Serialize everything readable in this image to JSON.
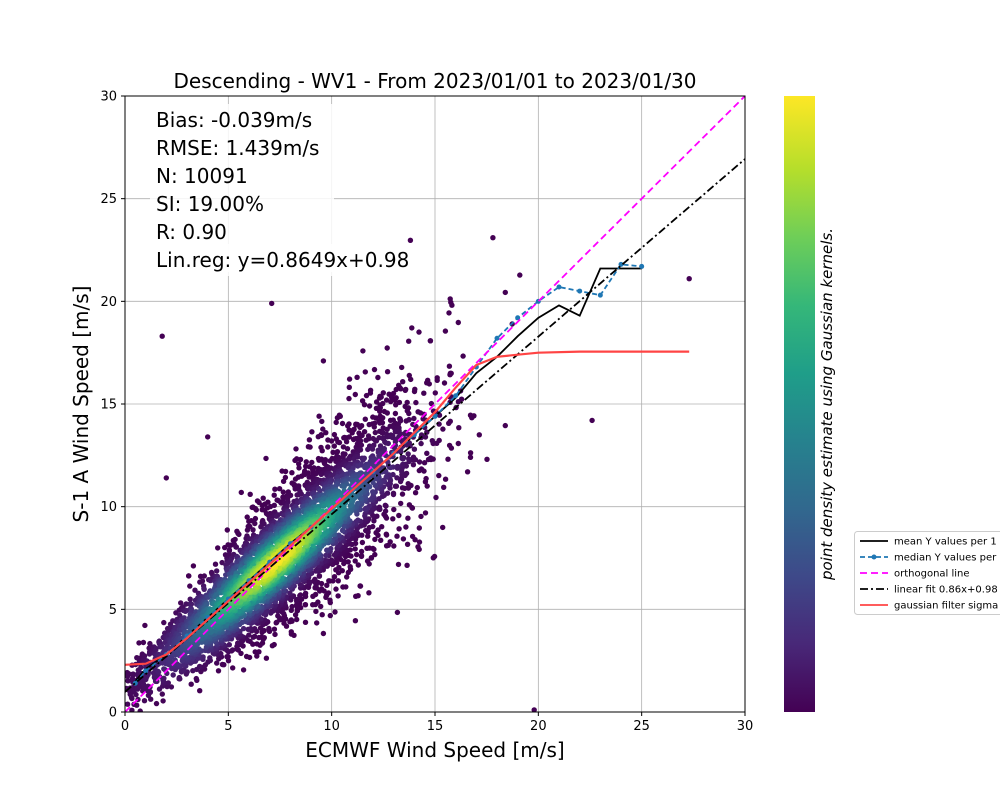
{
  "chart_data": {
    "type": "scatter",
    "title": "Descending - WV1 - From 2023/01/01 to 2023/01/30",
    "xlabel": "ECMWF Wind Speed [m/s]",
    "ylabel": "S-1 A Wind Speed [m/s]",
    "xlim": [
      0,
      30
    ],
    "ylim": [
      0,
      30
    ],
    "xticks": [
      0,
      5,
      10,
      15,
      20,
      25,
      30
    ],
    "yticks": [
      0,
      5,
      10,
      15,
      20,
      25,
      30
    ],
    "grid": true,
    "stats": [
      "Bias: -0.039m/s",
      "RMSE: 1.439m/s",
      "N: 10091",
      "SI: 19.00%",
      "R: 0.90",
      "Lin.reg: y=0.8649x+0.98"
    ],
    "colorbar_label": "point density estimate using Gaussian kernels.",
    "colormap": [
      "#440154",
      "#482878",
      "#3e4989",
      "#31688e",
      "#26828e",
      "#1f9e89",
      "#35b779",
      "#6ece58",
      "#b5de2b",
      "#fde725"
    ],
    "legend_position": "outside-right",
    "series": [
      {
        "name": "mean Y values per 1",
        "style": "solid",
        "color": "#000000",
        "x": [
          0.5,
          1,
          2,
          3,
          4,
          5,
          6,
          7,
          8,
          9,
          10,
          11,
          12,
          13,
          14,
          15,
          16,
          17,
          18,
          19,
          20,
          21,
          22,
          23,
          24,
          25
        ],
        "y": [
          1.5,
          2.1,
          2.8,
          3.7,
          4.6,
          5.5,
          6.4,
          7.3,
          8.2,
          9.0,
          9.9,
          10.8,
          11.7,
          12.6,
          13.5,
          14.4,
          15.3,
          16.5,
          17.3,
          18.3,
          19.2,
          19.8,
          19.3,
          21.6,
          21.6,
          21.6
        ]
      },
      {
        "name": "median Y values per",
        "style": "dashed-marker",
        "color": "#1f77b4",
        "x": [
          0.5,
          1,
          2,
          3,
          4,
          5,
          6,
          7,
          8,
          9,
          10,
          11,
          12,
          13,
          14,
          15,
          16,
          17,
          18,
          19,
          20,
          21,
          22,
          23,
          24,
          25
        ],
        "y": [
          1.4,
          2.0,
          2.8,
          3.7,
          4.6,
          5.5,
          6.4,
          7.3,
          8.2,
          9.0,
          9.9,
          10.8,
          11.7,
          12.6,
          13.5,
          14.4,
          15.4,
          16.8,
          18.2,
          19.2,
          20.0,
          20.7,
          20.5,
          20.3,
          21.8,
          21.7
        ]
      },
      {
        "name": "orthogonal line",
        "style": "dashed",
        "color": "#ff00ff",
        "x": [
          0,
          30
        ],
        "y": [
          0,
          30
        ]
      },
      {
        "name": "linear fit 0.86x+0.98",
        "style": "dashdot",
        "color": "#000000",
        "x": [
          0,
          30
        ],
        "y": [
          0.98,
          26.93
        ]
      },
      {
        "name": "gaussian filter sigma",
        "style": "solid",
        "color": "#ff4444",
        "x": [
          0,
          1,
          2,
          3,
          4,
          5,
          6,
          7,
          8,
          9,
          10,
          11,
          12,
          13,
          14,
          15,
          16,
          17,
          18,
          19,
          20,
          22,
          24,
          26,
          27.3
        ],
        "y": [
          2.3,
          2.35,
          2.8,
          3.6,
          4.5,
          5.4,
          6.3,
          7.2,
          8.1,
          9.0,
          9.9,
          10.8,
          11.7,
          12.6,
          13.6,
          14.6,
          15.8,
          16.9,
          17.3,
          17.4,
          17.5,
          17.55,
          17.55,
          17.55,
          17.55
        ]
      }
    ]
  }
}
